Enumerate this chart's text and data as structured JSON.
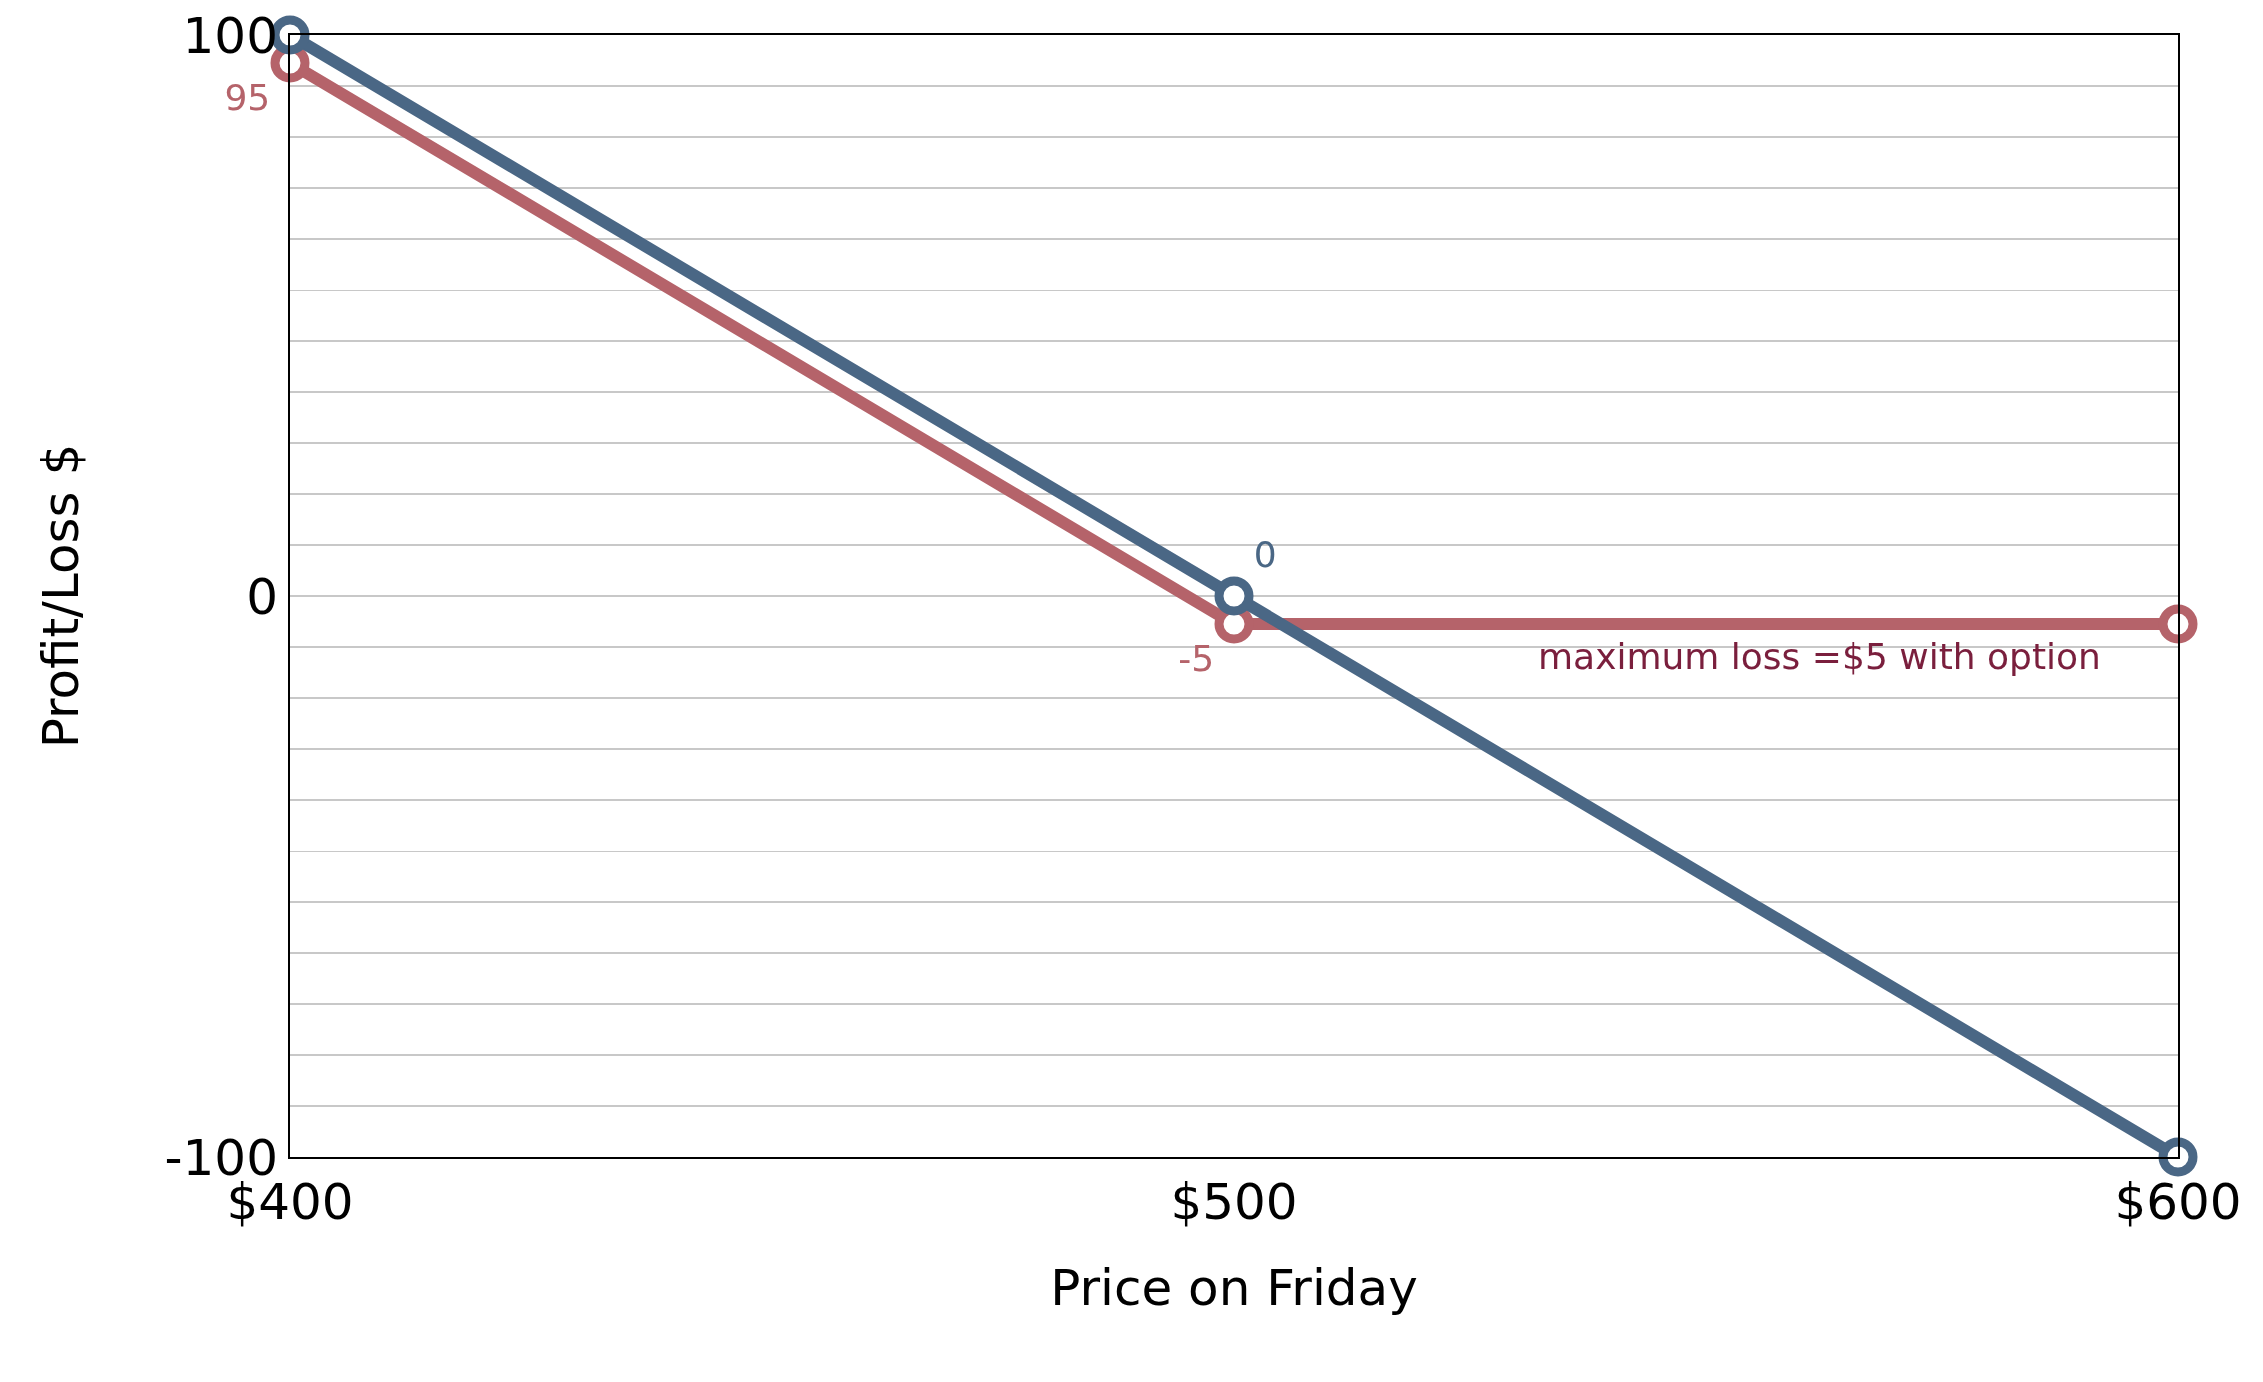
{
  "chart_data": {
    "type": "line",
    "xlabel": "Price on Friday",
    "ylabel": "Profit/Loss $",
    "x": [
      400,
      500,
      600
    ],
    "series": [
      {
        "color": "#b5636a",
        "values": [
          95,
          -5,
          -5
        ],
        "value_labels": [
          "95",
          "-5",
          null
        ]
      },
      {
        "color": "#4a6785",
        "values": [
          100,
          0,
          -100
        ],
        "value_labels": [
          null,
          "0",
          null
        ]
      }
    ],
    "xlim": [
      400,
      600
    ],
    "xticks": [
      {
        "value": 400,
        "label": "$400"
      },
      {
        "value": 500,
        "label": "$500"
      },
      {
        "value": 600,
        "label": "$600"
      }
    ],
    "ylim": [
      -100,
      100
    ],
    "yticks": [
      -100,
      {
        "value": -90.9,
        "label": null
      },
      {
        "value": -81.8,
        "label": null
      },
      {
        "value": -72.7,
        "label": null
      },
      {
        "value": -63.6,
        "label": null
      },
      {
        "value": -54.5,
        "label": null
      },
      {
        "value": -45.5,
        "label": null
      },
      {
        "value": -36.4,
        "label": null
      },
      {
        "value": -27.3,
        "label": null
      },
      {
        "value": -18.2,
        "label": null
      },
      {
        "value": -9.1,
        "label": null
      },
      0,
      {
        "value": 9.1,
        "label": null
      },
      {
        "value": 18.2,
        "label": null
      },
      {
        "value": 27.3,
        "label": null
      },
      {
        "value": 36.4,
        "label": null
      },
      {
        "value": 45.5,
        "label": null
      },
      {
        "value": 54.5,
        "label": null
      },
      {
        "value": 63.6,
        "label": null
      },
      {
        "value": 72.7,
        "label": null
      },
      {
        "value": 81.8,
        "label": null
      },
      {
        "value": 90.9,
        "label": null
      },
      100
    ],
    "grid": "y",
    "marker": "circle",
    "line_style": "solid",
    "annotations": [
      {
        "text": "maximum loss =$5 with option",
        "x": 562,
        "y": -5
      }
    ]
  }
}
